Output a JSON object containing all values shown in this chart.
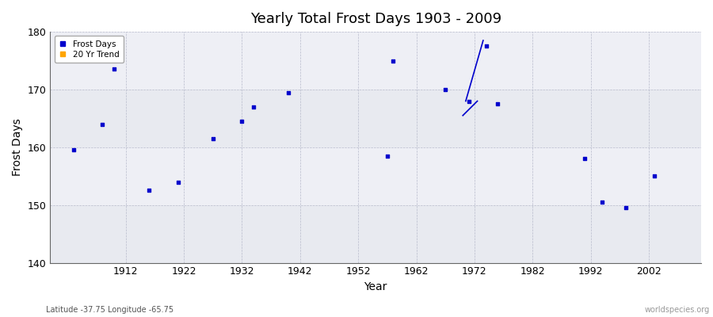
{
  "title": "Yearly Total Frost Days 1903 - 2009",
  "xlabel": "Year",
  "ylabel": "Frost Days",
  "subtitle": "Latitude -37.75 Longitude -65.75",
  "watermark": "worldspecies.org",
  "ylim": [
    140,
    180
  ],
  "xlim": [
    1899,
    2011
  ],
  "yticks": [
    140,
    150,
    160,
    170,
    180
  ],
  "xticks": [
    1912,
    1922,
    1932,
    1942,
    1952,
    1962,
    1972,
    1982,
    1992,
    2002
  ],
  "scatter_color": "#0000cc",
  "trend_color": "#0000cc",
  "bg_color": "#ffffff",
  "plot_bg_light": "#e8eaf0",
  "plot_bg_dark": "#dcdee8",
  "scatter_data": [
    [
      1903,
      159.5
    ],
    [
      1908,
      164.0
    ],
    [
      1910,
      173.5
    ],
    [
      1916,
      152.5
    ],
    [
      1921,
      154.0
    ],
    [
      1927,
      161.5
    ],
    [
      1932,
      164.5
    ],
    [
      1934,
      167.0
    ],
    [
      1940,
      169.5
    ],
    [
      1957,
      158.5
    ],
    [
      1958,
      175.0
    ],
    [
      1967,
      170.0
    ],
    [
      1971,
      168.0
    ],
    [
      1974,
      177.5
    ],
    [
      1976,
      167.5
    ],
    [
      1991,
      158.0
    ],
    [
      1994,
      150.5
    ],
    [
      1998,
      149.5
    ],
    [
      2003,
      155.0
    ]
  ],
  "trend_lines": [
    {
      "x": [
        1970.5,
        1973.5
      ],
      "y": [
        168.0,
        178.5
      ]
    },
    {
      "x": [
        1970.0,
        1972.5
      ],
      "y": [
        165.5,
        168.0
      ]
    }
  ],
  "bands": [
    [
      140,
      150,
      "#e8eaf0"
    ],
    [
      150,
      160,
      "#eeeff5"
    ],
    [
      160,
      170,
      "#e8eaf0"
    ],
    [
      170,
      180,
      "#eeeff5"
    ]
  ]
}
